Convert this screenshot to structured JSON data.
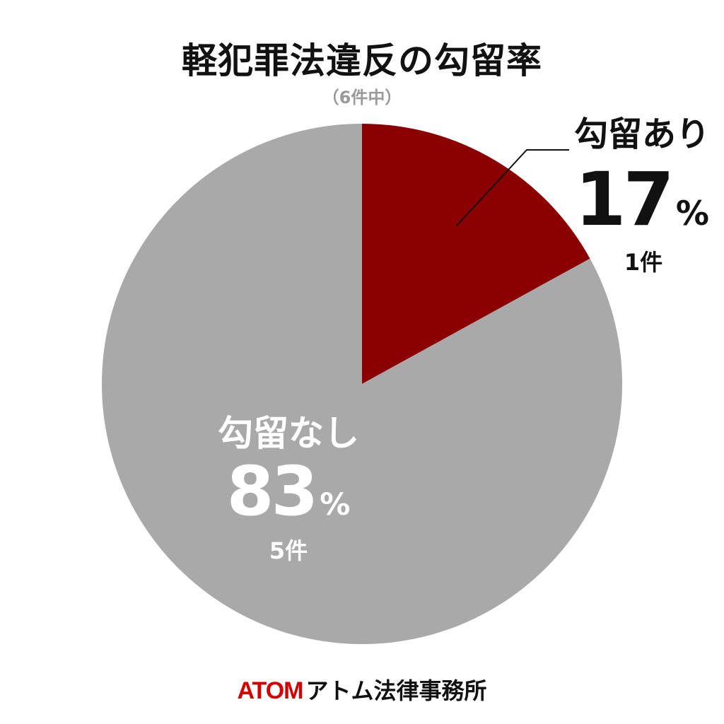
{
  "header": {
    "title": "軽犯罪法違反の勾留率",
    "subtitle": "（6件中）"
  },
  "chart_data": {
    "type": "pie",
    "start_angle_deg": 0,
    "direction": "clockwise",
    "slices": [
      {
        "label": "勾留あり",
        "value": 17,
        "percent_text": "17",
        "unit": "%",
        "count_text": "1件",
        "color": "#8b0000"
      },
      {
        "label": "勾留なし",
        "value": 83,
        "percent_text": "83",
        "unit": "%",
        "count_text": "5件",
        "color": "#a9a9a9"
      }
    ],
    "title": "軽犯罪法違反の勾留率",
    "subtitle": "（6件中）",
    "legend": "none"
  },
  "footer": {
    "brand": "ATOM",
    "firm_name": "アトム法律事務所",
    "brand_color": "#d20000"
  }
}
